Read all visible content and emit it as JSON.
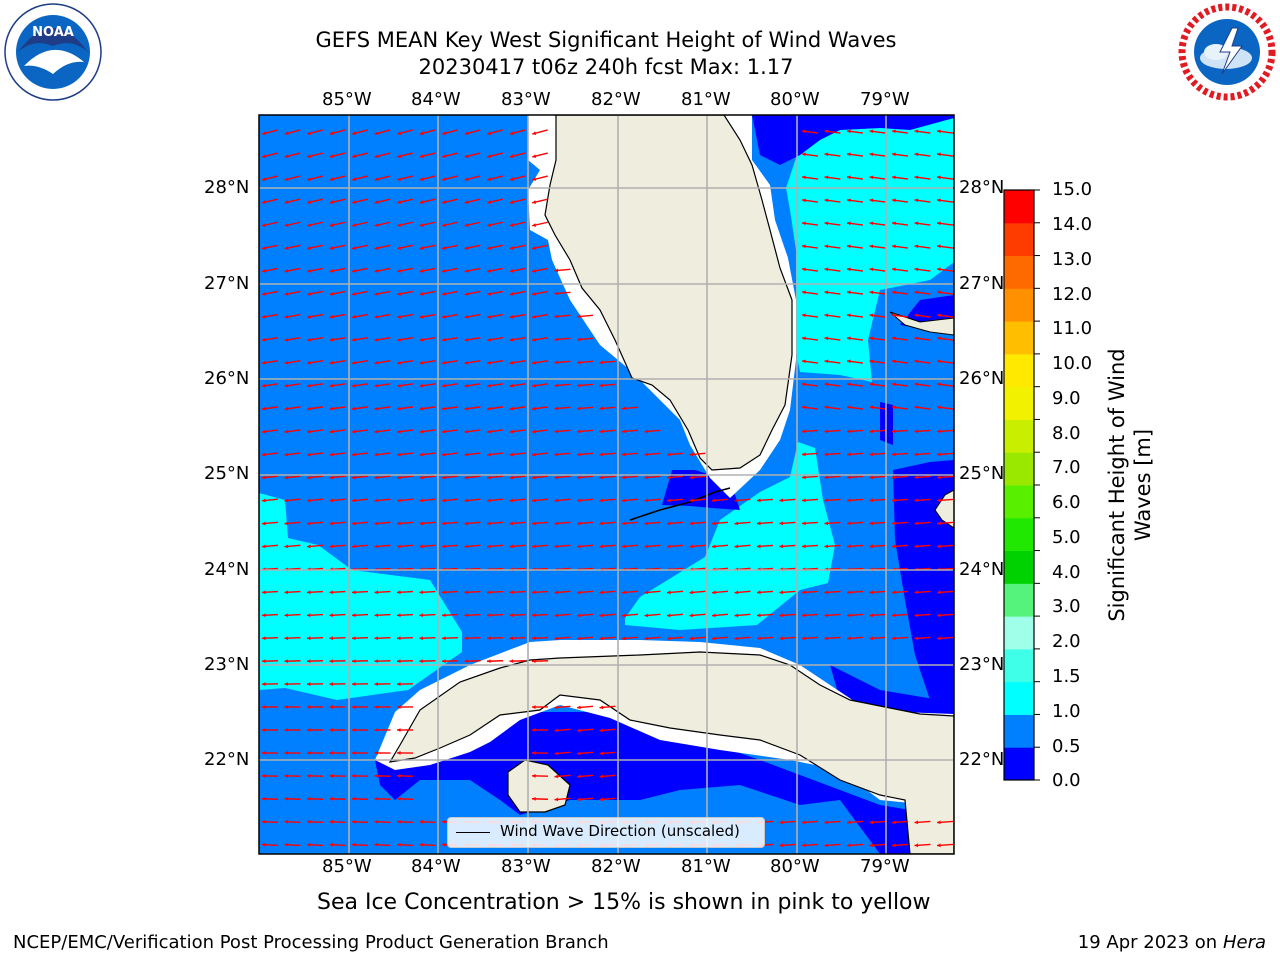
{
  "header": {
    "title_line1": "GEFS MEAN Key West Significant Height of Wind Waves",
    "title_line2": "20230417 t06z 240h fcst   Max: 1.17"
  },
  "logos": {
    "noaa_text": "NOAA",
    "noaa_ring": "NATIONAL OCEANIC AND ATMOSPHERIC ADMINISTRATION · U.S. DEPARTMENT OF COMMERCE",
    "nws_ring": "NATIONAL WEATHER SERVICE"
  },
  "map": {
    "lon_labels": [
      "85°W",
      "84°W",
      "83°W",
      "82°W",
      "81°W",
      "80°W",
      "79°W"
    ],
    "lat_labels": [
      "28°N",
      "27°N",
      "26°N",
      "25°N",
      "24°N",
      "23°N",
      "22°N"
    ],
    "legend_label": "Wind Wave Direction (unscaled)",
    "colors": {
      "land": "#EEEDDE",
      "deep": "#0000FF",
      "mid": "#0080FF",
      "high": "#00FFFF",
      "arrow": "#FF0000",
      "grid": "#B0B0B0"
    }
  },
  "colorbar": {
    "ticks": [
      "15.0",
      "14.0",
      "13.0",
      "12.0",
      "11.0",
      "10.0",
      "9.0",
      "8.0",
      "7.0",
      "6.0",
      "5.0",
      "4.0",
      "3.0",
      "2.0",
      "1.5",
      "1.0",
      "0.5",
      "0.0"
    ],
    "label": "Significant Height of Wind Waves [m]",
    "colors": [
      "#0000FF",
      "#0080FF",
      "#00FFFF",
      "#40FFE8",
      "#9FFFE8",
      "#55F27C",
      "#00D100",
      "#20E800",
      "#59F000",
      "#9AE800",
      "#C9EE00",
      "#F1F100",
      "#FFE900",
      "#FFBE00",
      "#FF9100",
      "#FF6A00",
      "#FF3C00",
      "#FF0000"
    ]
  },
  "caption": "Sea Ice Concentration > 15% is shown in pink to yellow",
  "footer": {
    "left": "NCEP/EMC/Verification Post Processing Product Generation Branch",
    "right_date": "19 Apr 2023 on ",
    "right_host": "Hera"
  }
}
